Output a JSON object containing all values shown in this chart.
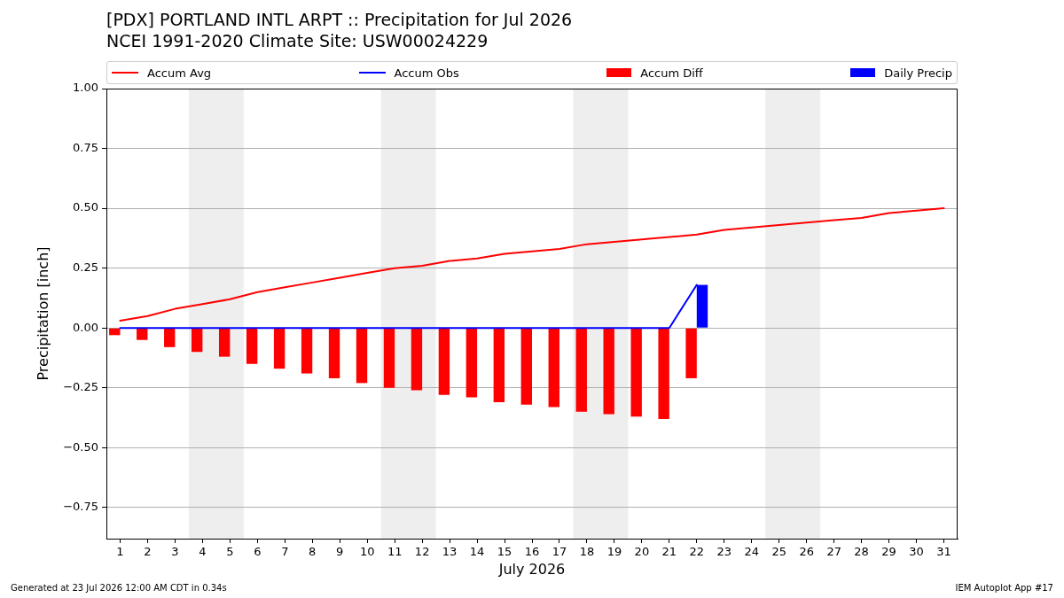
{
  "chart_data": {
    "type": "bar",
    "title": "[PDX] PORTLAND INTL ARPT :: Precipitation for Jul 2026",
    "subtitle": "NCEI 1991-2020 Climate Site: USW00024229",
    "xlabel": "July 2026",
    "ylabel": "Precipitation [inch]",
    "x": [
      1,
      2,
      3,
      4,
      5,
      6,
      7,
      8,
      9,
      10,
      11,
      12,
      13,
      14,
      15,
      16,
      17,
      18,
      19,
      20,
      21,
      22,
      23,
      24,
      25,
      26,
      27,
      28,
      29,
      30,
      31
    ],
    "series": [
      {
        "name": "Accum Avg",
        "type": "line",
        "color": "#ff0000",
        "values": [
          0.03,
          0.05,
          0.08,
          0.1,
          0.12,
          0.15,
          0.17,
          0.19,
          0.21,
          0.23,
          0.25,
          0.26,
          0.28,
          0.29,
          0.31,
          0.32,
          0.33,
          0.35,
          0.36,
          0.37,
          0.38,
          0.39,
          0.41,
          0.42,
          0.43,
          0.44,
          0.45,
          0.46,
          0.48,
          0.49,
          0.5
        ]
      },
      {
        "name": "Accum Obs",
        "type": "line",
        "color": "#0000ff",
        "values": [
          0,
          0,
          0,
          0,
          0,
          0,
          0,
          0,
          0,
          0,
          0,
          0,
          0,
          0,
          0,
          0,
          0,
          0,
          0,
          0,
          0,
          0.18,
          null,
          null,
          null,
          null,
          null,
          null,
          null,
          null,
          null
        ]
      },
      {
        "name": "Accum Diff",
        "color": "#ff0000",
        "values": [
          -0.03,
          -0.05,
          -0.08,
          -0.1,
          -0.12,
          -0.15,
          -0.17,
          -0.19,
          -0.21,
          -0.23,
          -0.25,
          -0.26,
          -0.28,
          -0.29,
          -0.31,
          -0.32,
          -0.33,
          -0.35,
          -0.36,
          -0.37,
          -0.38,
          -0.21,
          null,
          null,
          null,
          null,
          null,
          null,
          null,
          null,
          null
        ]
      },
      {
        "name": "Daily Precip",
        "color": "#0000ff",
        "values": [
          0,
          0,
          0,
          0,
          0,
          0,
          0,
          0,
          0,
          0,
          0,
          0,
          0,
          0,
          0,
          0,
          0,
          0,
          0,
          0,
          0,
          0.18,
          null,
          null,
          null,
          null,
          null,
          null,
          null,
          null,
          null
        ]
      }
    ],
    "xlim": [
      0.5,
      31.5
    ],
    "xticks": [
      1,
      2,
      3,
      4,
      5,
      6,
      7,
      8,
      9,
      10,
      11,
      12,
      13,
      14,
      15,
      16,
      17,
      18,
      19,
      20,
      21,
      22,
      23,
      24,
      25,
      26,
      27,
      28,
      29,
      30,
      31
    ],
    "ylim": [
      -0.88,
      1.0
    ],
    "yticks": [
      {
        "value": -0.75,
        "label": "−0.75"
      },
      {
        "value": -0.5,
        "label": "−0.50"
      },
      {
        "value": -0.25,
        "label": "−0.25"
      },
      {
        "value": 0,
        "label": "0.00"
      },
      {
        "value": 0.25,
        "label": "0.25"
      },
      {
        "value": 0.5,
        "label": "0.50"
      },
      {
        "value": 0.75,
        "label": "0.75"
      },
      {
        "value": 1.0,
        "label": "1.00"
      }
    ],
    "bands": [
      {
        "axis": "x",
        "from": 3.5,
        "to": 5.5,
        "color": "#eeeeee"
      },
      {
        "axis": "x",
        "from": 10.5,
        "to": 12.5,
        "color": "#eeeeee"
      },
      {
        "axis": "x",
        "from": 17.5,
        "to": 19.5,
        "color": "#eeeeee"
      },
      {
        "axis": "x",
        "from": 24.5,
        "to": 26.5,
        "color": "#eeeeee"
      }
    ],
    "grid": "y",
    "legend": "top",
    "annotations": [
      "Generated at 23 Jul 2026 12:00 AM CDT in 0.34s",
      "IEM Autoplot App #17"
    ]
  }
}
